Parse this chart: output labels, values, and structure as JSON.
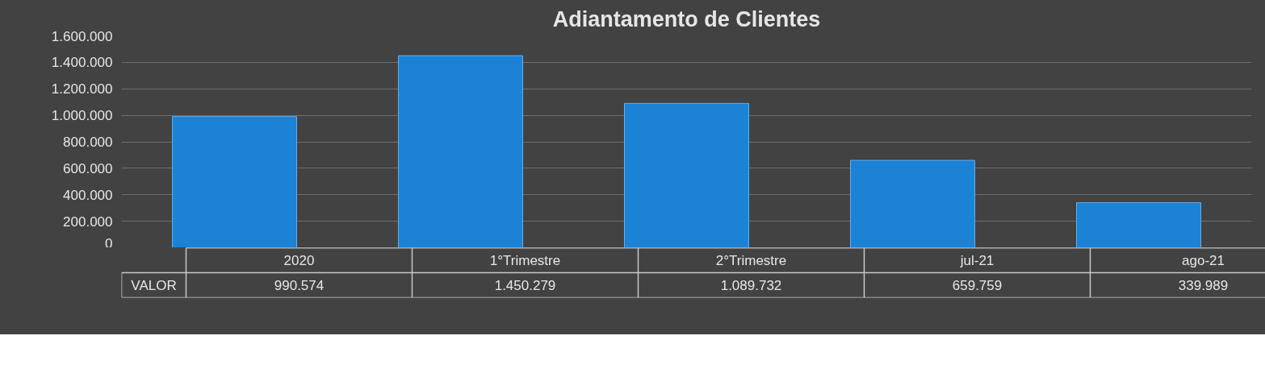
{
  "chart_data": {
    "type": "bar",
    "title": "Adiantamento de Clientes",
    "categories": [
      "2020",
      "1°Trimestre",
      "2°Trimestre",
      "jul-21",
      "ago-21"
    ],
    "series": [
      {
        "name": "VALOR",
        "color": "#1b82d6",
        "values": [
          990574,
          1450279,
          1089732,
          659759,
          339989
        ],
        "value_labels": [
          "990.574",
          "1.450.279",
          "1.089.732",
          "659.759",
          "339.989"
        ]
      }
    ],
    "ylim": [
      0,
      1600000
    ],
    "yticks": [
      {
        "value": 0,
        "label": "0"
      },
      {
        "value": 200000,
        "label": "200.000"
      },
      {
        "value": 400000,
        "label": "400.000"
      },
      {
        "value": 600000,
        "label": "600.000"
      },
      {
        "value": 800000,
        "label": "800.000"
      },
      {
        "value": 1000000,
        "label": "1.000.000"
      },
      {
        "value": 1200000,
        "label": "1.200.000"
      },
      {
        "value": 1400000,
        "label": "1.400.000"
      },
      {
        "value": 1600000,
        "label": "1.600.000"
      }
    ],
    "grid": "y"
  }
}
